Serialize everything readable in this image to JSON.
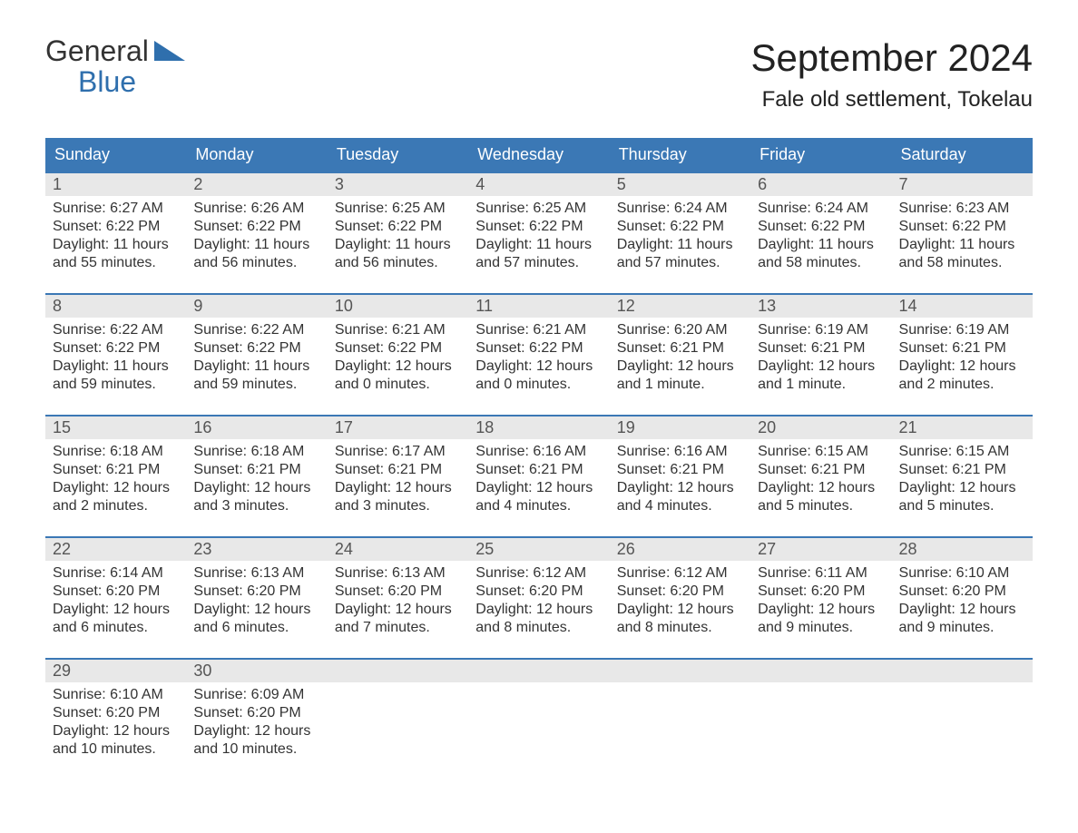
{
  "brand": {
    "word1": "General",
    "word2": "Blue"
  },
  "title": "September 2024",
  "location": "Fale old settlement, Tokelau",
  "colors": {
    "header_bg": "#3b78b5",
    "header_text": "#ffffff",
    "daynum_bg": "#e8e8e8",
    "border": "#3b78b5",
    "brand_blue": "#2f6fad",
    "text": "#333333",
    "page_bg": "#ffffff"
  },
  "daysOfWeek": [
    "Sunday",
    "Monday",
    "Tuesday",
    "Wednesday",
    "Thursday",
    "Friday",
    "Saturday"
  ],
  "weeks": [
    [
      {
        "num": "1",
        "sunrise": "Sunrise: 6:27 AM",
        "sunset": "Sunset: 6:22 PM",
        "daylight": "Daylight: 11 hours and 55 minutes."
      },
      {
        "num": "2",
        "sunrise": "Sunrise: 6:26 AM",
        "sunset": "Sunset: 6:22 PM",
        "daylight": "Daylight: 11 hours and 56 minutes."
      },
      {
        "num": "3",
        "sunrise": "Sunrise: 6:25 AM",
        "sunset": "Sunset: 6:22 PM",
        "daylight": "Daylight: 11 hours and 56 minutes."
      },
      {
        "num": "4",
        "sunrise": "Sunrise: 6:25 AM",
        "sunset": "Sunset: 6:22 PM",
        "daylight": "Daylight: 11 hours and 57 minutes."
      },
      {
        "num": "5",
        "sunrise": "Sunrise: 6:24 AM",
        "sunset": "Sunset: 6:22 PM",
        "daylight": "Daylight: 11 hours and 57 minutes."
      },
      {
        "num": "6",
        "sunrise": "Sunrise: 6:24 AM",
        "sunset": "Sunset: 6:22 PM",
        "daylight": "Daylight: 11 hours and 58 minutes."
      },
      {
        "num": "7",
        "sunrise": "Sunrise: 6:23 AM",
        "sunset": "Sunset: 6:22 PM",
        "daylight": "Daylight: 11 hours and 58 minutes."
      }
    ],
    [
      {
        "num": "8",
        "sunrise": "Sunrise: 6:22 AM",
        "sunset": "Sunset: 6:22 PM",
        "daylight": "Daylight: 11 hours and 59 minutes."
      },
      {
        "num": "9",
        "sunrise": "Sunrise: 6:22 AM",
        "sunset": "Sunset: 6:22 PM",
        "daylight": "Daylight: 11 hours and 59 minutes."
      },
      {
        "num": "10",
        "sunrise": "Sunrise: 6:21 AM",
        "sunset": "Sunset: 6:22 PM",
        "daylight": "Daylight: 12 hours and 0 minutes."
      },
      {
        "num": "11",
        "sunrise": "Sunrise: 6:21 AM",
        "sunset": "Sunset: 6:22 PM",
        "daylight": "Daylight: 12 hours and 0 minutes."
      },
      {
        "num": "12",
        "sunrise": "Sunrise: 6:20 AM",
        "sunset": "Sunset: 6:21 PM",
        "daylight": "Daylight: 12 hours and 1 minute."
      },
      {
        "num": "13",
        "sunrise": "Sunrise: 6:19 AM",
        "sunset": "Sunset: 6:21 PM",
        "daylight": "Daylight: 12 hours and 1 minute."
      },
      {
        "num": "14",
        "sunrise": "Sunrise: 6:19 AM",
        "sunset": "Sunset: 6:21 PM",
        "daylight": "Daylight: 12 hours and 2 minutes."
      }
    ],
    [
      {
        "num": "15",
        "sunrise": "Sunrise: 6:18 AM",
        "sunset": "Sunset: 6:21 PM",
        "daylight": "Daylight: 12 hours and 2 minutes."
      },
      {
        "num": "16",
        "sunrise": "Sunrise: 6:18 AM",
        "sunset": "Sunset: 6:21 PM",
        "daylight": "Daylight: 12 hours and 3 minutes."
      },
      {
        "num": "17",
        "sunrise": "Sunrise: 6:17 AM",
        "sunset": "Sunset: 6:21 PM",
        "daylight": "Daylight: 12 hours and 3 minutes."
      },
      {
        "num": "18",
        "sunrise": "Sunrise: 6:16 AM",
        "sunset": "Sunset: 6:21 PM",
        "daylight": "Daylight: 12 hours and 4 minutes."
      },
      {
        "num": "19",
        "sunrise": "Sunrise: 6:16 AM",
        "sunset": "Sunset: 6:21 PM",
        "daylight": "Daylight: 12 hours and 4 minutes."
      },
      {
        "num": "20",
        "sunrise": "Sunrise: 6:15 AM",
        "sunset": "Sunset: 6:21 PM",
        "daylight": "Daylight: 12 hours and 5 minutes."
      },
      {
        "num": "21",
        "sunrise": "Sunrise: 6:15 AM",
        "sunset": "Sunset: 6:21 PM",
        "daylight": "Daylight: 12 hours and 5 minutes."
      }
    ],
    [
      {
        "num": "22",
        "sunrise": "Sunrise: 6:14 AM",
        "sunset": "Sunset: 6:20 PM",
        "daylight": "Daylight: 12 hours and 6 minutes."
      },
      {
        "num": "23",
        "sunrise": "Sunrise: 6:13 AM",
        "sunset": "Sunset: 6:20 PM",
        "daylight": "Daylight: 12 hours and 6 minutes."
      },
      {
        "num": "24",
        "sunrise": "Sunrise: 6:13 AM",
        "sunset": "Sunset: 6:20 PM",
        "daylight": "Daylight: 12 hours and 7 minutes."
      },
      {
        "num": "25",
        "sunrise": "Sunrise: 6:12 AM",
        "sunset": "Sunset: 6:20 PM",
        "daylight": "Daylight: 12 hours and 8 minutes."
      },
      {
        "num": "26",
        "sunrise": "Sunrise: 6:12 AM",
        "sunset": "Sunset: 6:20 PM",
        "daylight": "Daylight: 12 hours and 8 minutes."
      },
      {
        "num": "27",
        "sunrise": "Sunrise: 6:11 AM",
        "sunset": "Sunset: 6:20 PM",
        "daylight": "Daylight: 12 hours and 9 minutes."
      },
      {
        "num": "28",
        "sunrise": "Sunrise: 6:10 AM",
        "sunset": "Sunset: 6:20 PM",
        "daylight": "Daylight: 12 hours and 9 minutes."
      }
    ],
    [
      {
        "num": "29",
        "sunrise": "Sunrise: 6:10 AM",
        "sunset": "Sunset: 6:20 PM",
        "daylight": "Daylight: 12 hours and 10 minutes."
      },
      {
        "num": "30",
        "sunrise": "Sunrise: 6:09 AM",
        "sunset": "Sunset: 6:20 PM",
        "daylight": "Daylight: 12 hours and 10 minutes."
      },
      {
        "empty": true
      },
      {
        "empty": true
      },
      {
        "empty": true
      },
      {
        "empty": true
      },
      {
        "empty": true
      }
    ]
  ]
}
